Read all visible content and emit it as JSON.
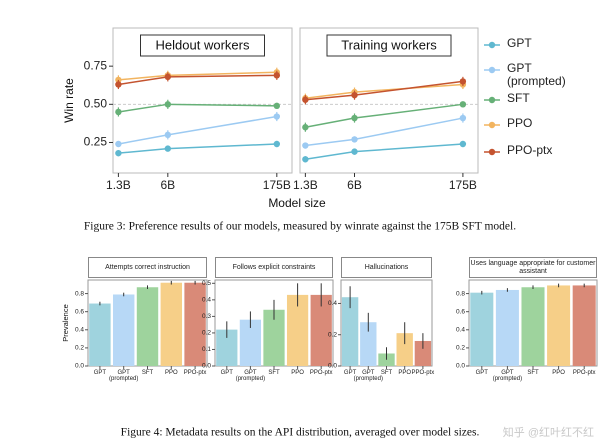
{
  "chart_data": [
    {
      "type": "line",
      "title": "Heldout workers",
      "x_label": "Model size",
      "y_label": "Win rate",
      "log_x": true,
      "x": [
        1.3,
        6,
        175
      ],
      "xlim": [
        1.1,
        280
      ],
      "xticks": [
        {
          "value": 1.3,
          "label": "1.3B"
        },
        {
          "value": 6,
          "label": "6B"
        },
        {
          "value": 175,
          "label": "175B"
        }
      ],
      "ylim": [
        0.05,
        1.0
      ],
      "yticks": [
        0.25,
        {
          "value": 0.5,
          "label": "0.50"
        },
        0.75
      ],
      "hline": 0.5,
      "series": [
        {
          "name": "GPT",
          "color": "#5fb8d0",
          "values": [
            0.18,
            0.21,
            0.24
          ],
          "errors": [
            0.02,
            0.02,
            0.02
          ]
        },
        {
          "name": "GPT (prompted)",
          "color": "#9ccaf2",
          "values": [
            0.24,
            0.3,
            0.42
          ],
          "errors": [
            0.02,
            0.03,
            0.03
          ]
        },
        {
          "name": "SFT",
          "color": "#66b077",
          "values": [
            0.45,
            0.5,
            0.49
          ],
          "errors": [
            0.03,
            0.03,
            0.01
          ]
        },
        {
          "name": "PPO",
          "color": "#f2b45f",
          "values": [
            0.66,
            0.69,
            0.71
          ],
          "errors": [
            0.03,
            0.03,
            0.03
          ]
        },
        {
          "name": "PPO-ptx",
          "color": "#c4532f",
          "values": [
            0.63,
            0.68,
            0.69
          ],
          "errors": [
            0.03,
            0.03,
            0.03
          ]
        }
      ]
    },
    {
      "type": "line",
      "title": "Training workers",
      "log_x": true,
      "x": [
        1.3,
        6,
        175
      ],
      "xlim": [
        1.1,
        280
      ],
      "xticks": [
        {
          "value": 1.3,
          "label": "1.3B"
        },
        {
          "value": 6,
          "label": "6B"
        },
        {
          "value": 175,
          "label": "175B"
        }
      ],
      "ylim": [
        0.05,
        1.0
      ],
      "hline": 0.5,
      "series": [
        {
          "color": "#5fb8d0",
          "values": [
            0.14,
            0.19,
            0.24
          ],
          "errors": [
            0.02,
            0.02,
            0.02
          ]
        },
        {
          "color": "#9ccaf2",
          "values": [
            0.23,
            0.27,
            0.41
          ],
          "errors": [
            0.02,
            0.02,
            0.03
          ]
        },
        {
          "color": "#66b077",
          "values": [
            0.35,
            0.41,
            0.5
          ],
          "errors": [
            0.03,
            0.03,
            0.01
          ]
        },
        {
          "color": "#f2b45f",
          "values": [
            0.54,
            0.58,
            0.63
          ],
          "errors": [
            0.03,
            0.03,
            0.03
          ]
        },
        {
          "color": "#c4532f",
          "values": [
            0.53,
            0.56,
            0.65
          ],
          "errors": [
            0.03,
            0.03,
            0.03
          ]
        }
      ]
    },
    {
      "type": "bar",
      "title": "Attempts correct instruction",
      "y_label": "Prevalence",
      "categories": [
        "GPT",
        "GPT (prompted)",
        "SFT",
        "PPO",
        "PPO-ptx"
      ],
      "values": [
        0.69,
        0.79,
        0.87,
        0.92,
        0.92
      ],
      "errors": [
        0.02,
        0.02,
        0.02,
        0.02,
        0.02
      ],
      "colors": [
        "#9fd3de",
        "#b7d8f6",
        "#9ed39d",
        "#f6cf88",
        "#d98a78"
      ],
      "ylim": [
        0,
        0.95
      ],
      "yticks": [
        {
          "value": 0,
          "label": "0.0"
        },
        0.2,
        0.4,
        0.6,
        0.8
      ]
    },
    {
      "type": "bar",
      "title": "Follows explicit constraints",
      "categories": [
        "GPT",
        "GPT (prompted)",
        "SFT",
        "PPO",
        "PPO-ptx"
      ],
      "values": [
        0.22,
        0.28,
        0.34,
        0.43,
        0.43
      ],
      "errors": [
        0.05,
        0.05,
        0.06,
        0.07,
        0.07
      ],
      "colors": [
        "#9fd3de",
        "#b7d8f6",
        "#9ed39d",
        "#f6cf88",
        "#d98a78"
      ],
      "ylim": [
        0,
        0.52
      ],
      "yticks": [
        {
          "value": 0,
          "label": "0.0"
        },
        0.1,
        0.2,
        0.3,
        0.4,
        0.5
      ]
    },
    {
      "type": "bar",
      "title": "Hallucinations",
      "categories": [
        "GPT",
        "GPT (prompted)",
        "SFT",
        "PPO",
        "PPO-ptx"
      ],
      "values": [
        0.44,
        0.28,
        0.08,
        0.21,
        0.16
      ],
      "errors": [
        0.07,
        0.06,
        0.04,
        0.07,
        0.05
      ],
      "colors": [
        "#9fd3de",
        "#b7d8f6",
        "#9ed39d",
        "#f6cf88",
        "#d98a78"
      ],
      "ylim": [
        0,
        0.55
      ],
      "yticks": [
        {
          "value": 0,
          "label": "0.0"
        },
        0.2,
        0.4
      ]
    },
    {
      "type": "bar",
      "title": "Uses language appropriate for customer assistant",
      "categories": [
        "GPT",
        "GPT (prompted)",
        "SFT",
        "PPO",
        "PPO-ptx"
      ],
      "values": [
        0.81,
        0.84,
        0.87,
        0.89,
        0.89
      ],
      "errors": [
        0.02,
        0.02,
        0.02,
        0.02,
        0.02
      ],
      "colors": [
        "#9fd3de",
        "#b7d8f6",
        "#9ed39d",
        "#f6cf88",
        "#d98a78"
      ],
      "ylim": [
        0,
        0.95
      ],
      "yticks": [
        {
          "value": 0,
          "label": "0.0"
        },
        0.2,
        0.4,
        0.6,
        0.8
      ]
    }
  ],
  "captions": [
    "Figure 3: Preference results of our models, measured by winrate against the 175B SFT model.",
    "Figure 4: Metadata results on the API distribution, averaged over model sizes."
  ],
  "watermark": "知乎 @红叶红不红"
}
